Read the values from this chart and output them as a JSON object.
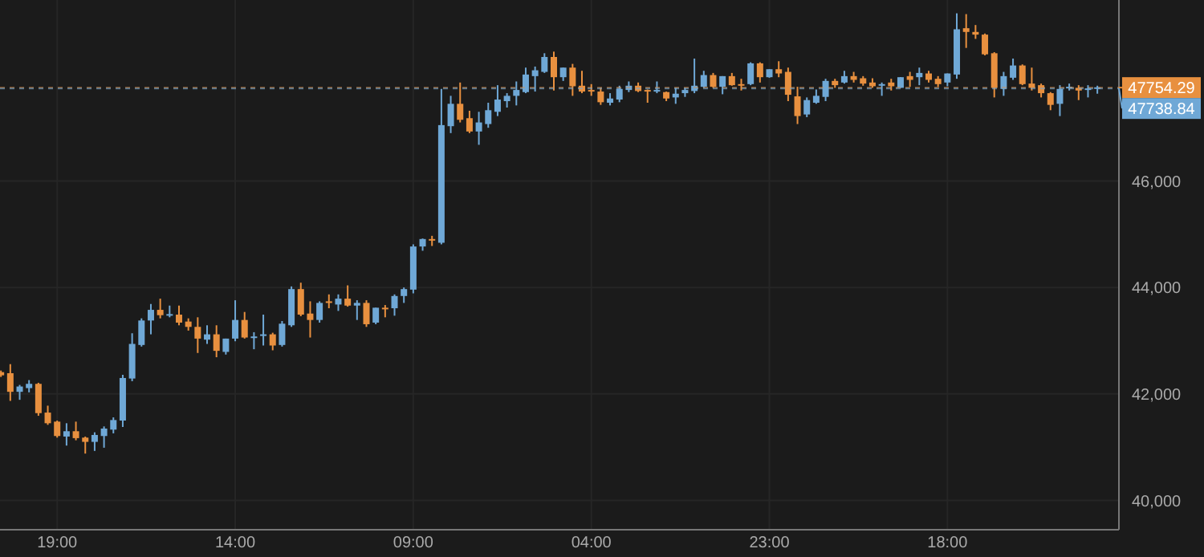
{
  "chart_data": {
    "type": "candlestick",
    "grid": true,
    "colors": [
      "#e8903f",
      "#e8903f",
      "#6fa8d6",
      "#6fa8d6",
      "#e8903f",
      "#e8903f",
      "#e8903f",
      "#6fa8d6",
      "#e8903f",
      "#e8903f",
      "#6fa8d6",
      "#6fa8d6",
      "#6fa8d6",
      "#6fa8d6",
      "#6fa8d6",
      "#6fa8d6",
      "#6fa8d6",
      "#e8903f",
      "#6fa8d6",
      "#e8903f",
      "#e8903f",
      "#e8903f",
      "#6fa8d6",
      "#e8903f",
      "#6fa8d6",
      "#6fa8d6",
      "#e8903f",
      "#6fa8d6",
      "#6fa8d6",
      "#e8903f",
      "#6fa8d6",
      "#6fa8d6",
      "#e8903f",
      "#e8903f",
      "#6fa8d6",
      "#e8903f",
      "#6fa8d6",
      "#e8903f",
      "#6fa8d6",
      "#e8903f",
      "#6fa8d6",
      "#e8903f",
      "#6fa8d6",
      "#6fa8d6",
      "#6fa8d6",
      "#6fa8d6",
      "#e8903f",
      "#6fa8d6",
      "#6fa8d6",
      "#e8903f",
      "#e8903f",
      "#6fa8d6",
      "#6fa8d6",
      "#6fa8d6",
      "#6fa8d6",
      "#6fa8d6",
      "#6fa8d6",
      "#6fa8d6",
      "#6fa8d6",
      "#e8903f",
      "#6fa8d6",
      "#e8903f",
      "#e8903f",
      "#e8903f",
      "#e8903f",
      "#6fa8d6",
      "#6fa8d6",
      "#6fa8d6",
      "#e8903f",
      "#e8903f",
      "#6fa8d6",
      "#e8903f",
      "#6fa8d6",
      "#6fa8d6",
      "#6fa8d6",
      "#6fa8d6",
      "#e8903f",
      "#6fa8d6",
      "#e8903f",
      "#e8903f",
      "#6fa8d6",
      "#e8903f",
      "#6fa8d6",
      "#e8903f",
      "#e8903f",
      "#e8903f",
      "#6fa8d6",
      "#6fa8d6",
      "#6fa8d6",
      "#e8903f",
      "#6fa8d6",
      "#e8903f",
      "#e8903f",
      "#e8903f",
      "#6fa8d6",
      "#e8903f",
      "#6fa8d6",
      "#e8903f",
      "#6fa8d6",
      "#e8903f",
      "#e8903f",
      "#6fa8d6",
      "#6fa8d6",
      "#e8903f",
      "#e8903f",
      "#e8903f",
      "#e8903f",
      "#6fa8d6",
      "#6fa8d6",
      "#e8903f",
      "#e8903f",
      "#e8903f",
      "#e8903f",
      "#6fa8d6",
      "#6fa8d6",
      "#e8903f",
      "#6fa8d6",
      "#6fa8d6"
    ],
    "categories": [
      null,
      null,
      null,
      null,
      null,
      null,
      "19:00",
      null,
      null,
      null,
      null,
      null,
      null,
      null,
      null,
      null,
      null,
      null,
      null,
      null,
      null,
      null,
      null,
      null,
      null,
      "14:00",
      null,
      null,
      null,
      null,
      null,
      null,
      null,
      null,
      null,
      null,
      null,
      null,
      null,
      null,
      null,
      null,
      null,
      null,
      "09:00",
      null,
      null,
      null,
      null,
      null,
      null,
      null,
      null,
      null,
      null,
      null,
      null,
      null,
      null,
      null,
      null,
      null,
      null,
      "04:00",
      null,
      null,
      null,
      null,
      null,
      null,
      null,
      null,
      null,
      null,
      null,
      null,
      null,
      null,
      null,
      null,
      null,
      null,
      "23:00",
      null,
      null,
      null,
      null,
      null,
      null,
      null,
      null,
      null,
      null,
      null,
      null,
      null,
      null,
      null,
      null,
      null,
      null,
      "18:00",
      null,
      null,
      null,
      null,
      null,
      null,
      null,
      null,
      null,
      null,
      null,
      null,
      null,
      null,
      null,
      null
    ],
    "ylim": [
      39450,
      49400
    ],
    "yticks": [
      {
        "value": 40000,
        "label": "40,000"
      },
      {
        "value": 42000,
        "label": "42,000"
      },
      {
        "value": 44000,
        "label": "44,000"
      },
      {
        "value": 46000,
        "label": "46,000"
      }
    ],
    "ref_lines": [
      {
        "axis": "y",
        "value": 47754.29,
        "label": "47754.29",
        "color": "#e8903f",
        "line_style": "dashed"
      },
      {
        "axis": "y",
        "value": 47738.84,
        "label": "47738.84",
        "color": "#6fa8d6",
        "line_style": "dashed"
      }
    ],
    "ohlc": [
      [
        42410,
        42440,
        42320,
        42350
      ],
      [
        42390,
        42560,
        41870,
        42040
      ],
      [
        42040,
        42170,
        41890,
        42140
      ],
      [
        42110,
        42260,
        42030,
        42190
      ],
      [
        42190,
        42210,
        41590,
        41640
      ],
      [
        41650,
        41780,
        41420,
        41450
      ],
      [
        41480,
        41500,
        41180,
        41210
      ],
      [
        41200,
        41450,
        41030,
        41300
      ],
      [
        41300,
        41480,
        41130,
        41170
      ],
      [
        41180,
        41200,
        40880,
        41100
      ],
      [
        41100,
        41280,
        40930,
        41230
      ],
      [
        41210,
        41390,
        40990,
        41350
      ],
      [
        41330,
        41560,
        41260,
        41510
      ],
      [
        41500,
        42360,
        41380,
        42300
      ],
      [
        42290,
        43140,
        42240,
        42940
      ],
      [
        42920,
        43420,
        42890,
        43380
      ],
      [
        43380,
        43690,
        43120,
        43580
      ],
      [
        43580,
        43790,
        43420,
        43480
      ],
      [
        43480,
        43660,
        43440,
        43500
      ],
      [
        43490,
        43660,
        43290,
        43340
      ],
      [
        43360,
        43420,
        43190,
        43260
      ],
      [
        43260,
        43440,
        42770,
        43040
      ],
      [
        43020,
        43290,
        42940,
        43120
      ],
      [
        43120,
        43290,
        42690,
        42810
      ],
      [
        42790,
        43040,
        42740,
        43040
      ],
      [
        43040,
        43760,
        42990,
        43390
      ],
      [
        43390,
        43540,
        43040,
        43060
      ],
      [
        43060,
        43160,
        42840,
        43080
      ],
      [
        43100,
        43490,
        42910,
        43120
      ],
      [
        43120,
        43150,
        42820,
        42910
      ],
      [
        42920,
        43370,
        42890,
        43320
      ],
      [
        43290,
        44020,
        43260,
        43970
      ],
      [
        43970,
        44090,
        43460,
        43490
      ],
      [
        43510,
        43740,
        43060,
        43390
      ],
      [
        43390,
        43740,
        43340,
        43710
      ],
      [
        43740,
        43870,
        43610,
        43720
      ],
      [
        43680,
        43870,
        43560,
        43790
      ],
      [
        43790,
        44040,
        43640,
        43660
      ],
      [
        43660,
        43760,
        43390,
        43710
      ],
      [
        43710,
        43760,
        43260,
        43310
      ],
      [
        43340,
        43620,
        43310,
        43620
      ],
      [
        43620,
        43670,
        43440,
        43600
      ],
      [
        43610,
        43870,
        43470,
        43840
      ],
      [
        43840,
        44000,
        43710,
        43970
      ],
      [
        43960,
        44810,
        43890,
        44770
      ],
      [
        44770,
        44920,
        44690,
        44910
      ],
      [
        44910,
        44970,
        44780,
        44890
      ],
      [
        44840,
        47730,
        44810,
        47050
      ],
      [
        47030,
        47600,
        46900,
        47450
      ],
      [
        47450,
        47850,
        47100,
        47150
      ],
      [
        47180,
        47320,
        46900,
        46930
      ],
      [
        46930,
        47300,
        46680,
        47100
      ],
      [
        47070,
        47470,
        47000,
        47330
      ],
      [
        47300,
        47800,
        47220,
        47530
      ],
      [
        47500,
        47650,
        47380,
        47600
      ],
      [
        47600,
        47870,
        47420,
        47710
      ],
      [
        47670,
        48130,
        47650,
        48000
      ],
      [
        47970,
        48150,
        47680,
        48080
      ],
      [
        48050,
        48400,
        48030,
        48330
      ],
      [
        48330,
        48430,
        47700,
        47950
      ],
      [
        47950,
        48130,
        47880,
        48130
      ],
      [
        48130,
        48200,
        47600,
        47780
      ],
      [
        47790,
        48070,
        47650,
        47680
      ],
      [
        47710,
        47820,
        47600,
        47690
      ],
      [
        47680,
        47750,
        47430,
        47480
      ],
      [
        47470,
        47650,
        47420,
        47550
      ],
      [
        47530,
        47790,
        47480,
        47730
      ],
      [
        47710,
        47870,
        47670,
        47790
      ],
      [
        47790,
        47850,
        47670,
        47690
      ],
      [
        47710,
        47720,
        47470,
        47700
      ],
      [
        47690,
        47870,
        47650,
        47710
      ],
      [
        47670,
        47680,
        47500,
        47550
      ],
      [
        47570,
        47750,
        47450,
        47640
      ],
      [
        47650,
        47750,
        47580,
        47710
      ],
      [
        47690,
        48300,
        47650,
        47790
      ],
      [
        47770,
        48070,
        47750,
        47990
      ],
      [
        47990,
        48030,
        47750,
        47770
      ],
      [
        47770,
        47970,
        47630,
        47970
      ],
      [
        47970,
        48030,
        47790,
        47800
      ],
      [
        47820,
        47920,
        47700,
        47810
      ],
      [
        47820,
        48230,
        47800,
        48210
      ],
      [
        48210,
        48230,
        47850,
        47950
      ],
      [
        47950,
        48100,
        47940,
        48100
      ],
      [
        48100,
        48250,
        47950,
        48020
      ],
      [
        48050,
        48130,
        47500,
        47620
      ],
      [
        47590,
        47770,
        47070,
        47220
      ],
      [
        47250,
        47570,
        47200,
        47520
      ],
      [
        47470,
        47720,
        47450,
        47600
      ],
      [
        47580,
        47920,
        47500,
        47880
      ],
      [
        47880,
        47920,
        47750,
        47800
      ],
      [
        47850,
        48070,
        47830,
        47970
      ],
      [
        47970,
        48050,
        47850,
        47900
      ],
      [
        47930,
        47970,
        47790,
        47830
      ],
      [
        47850,
        47930,
        47750,
        47780
      ],
      [
        47800,
        47850,
        47600,
        47820
      ],
      [
        47850,
        47920,
        47700,
        47780
      ],
      [
        47750,
        47950,
        47750,
        47950
      ],
      [
        47970,
        48050,
        47770,
        47900
      ],
      [
        47950,
        48130,
        47800,
        48030
      ],
      [
        48020,
        48070,
        47850,
        47900
      ],
      [
        47920,
        47970,
        47770,
        47820
      ],
      [
        47850,
        48020,
        47780,
        48020
      ],
      [
        48000,
        49150,
        47920,
        48850
      ],
      [
        48870,
        49135,
        48500,
        48800
      ],
      [
        48800,
        48930,
        48670,
        48750
      ],
      [
        48750,
        48770,
        48360,
        48380
      ],
      [
        48400,
        48420,
        47570,
        47750
      ],
      [
        47730,
        48050,
        47600,
        47970
      ],
      [
        47940,
        48300,
        47900,
        48170
      ],
      [
        48170,
        48190,
        47800,
        47820
      ],
      [
        47830,
        48130,
        47700,
        47750
      ],
      [
        47800,
        47830,
        47570,
        47650
      ],
      [
        47650,
        47670,
        47330,
        47430
      ],
      [
        47450,
        47800,
        47220,
        47730
      ],
      [
        47740,
        47830,
        47700,
        47770
      ],
      [
        47750,
        47800,
        47520,
        47700
      ],
      [
        47710,
        47800,
        47570,
        47740
      ],
      [
        47740,
        47790,
        47640,
        47760
      ]
    ]
  }
}
